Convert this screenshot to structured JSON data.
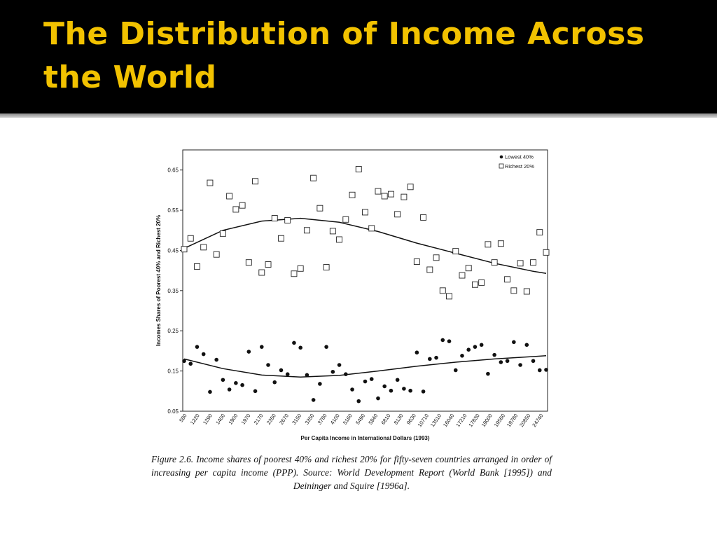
{
  "slide": {
    "title": "The Distribution of Income Across the World"
  },
  "caption": {
    "text": "Figure 2.6.  Income shares of poorest 40% and richest 20% for fifty-seven countries arranged in order of increasing per capita income (PPP). Source: World Development Report (World Bank [1995]) and Deininger and Squire [1996a]."
  },
  "colors": {
    "title": "#f2c200",
    "background": "#000000"
  },
  "chart_data": {
    "type": "scatter",
    "xlabel": "Per Capita Income in International Dollars (1993)",
    "ylabel": "Incomes Shares of Poorest 40% and Richest 20%",
    "ylim": [
      0.05,
      0.7
    ],
    "yticks": [
      0.05,
      0.15,
      0.25,
      0.35,
      0.45,
      0.55,
      0.65
    ],
    "legend_position": "top-right",
    "x_tick_labels": [
      "580",
      "1220",
      "1290",
      "1400",
      "1900",
      "1970",
      "2170",
      "2350",
      "2670",
      "3150",
      "3350",
      "3780",
      "4100",
      "5160",
      "5490",
      "5840",
      "6810",
      "8130",
      "9630",
      "10710",
      "13510",
      "16040",
      "17210",
      "17830",
      "19000",
      "19560",
      "19780",
      "20850",
      "24740"
    ],
    "grid": false,
    "series": [
      {
        "name": "Lowest 40%",
        "marker": "filled-circle",
        "values": [
          0.175,
          0.168,
          0.21,
          0.192,
          0.098,
          0.178,
          0.128,
          0.104,
          0.12,
          0.115,
          0.198,
          0.1,
          0.21,
          0.165,
          0.122,
          0.152,
          0.142,
          0.22,
          0.208,
          0.14,
          0.078,
          0.118,
          0.21,
          0.148,
          0.165,
          0.142,
          0.104,
          0.075,
          0.124,
          0.13,
          0.082,
          0.112,
          0.101,
          0.128,
          0.106,
          0.101,
          0.196,
          0.099,
          0.18,
          0.183,
          0.227,
          0.224,
          0.152,
          0.188,
          0.203,
          0.21,
          0.215,
          0.143,
          0.19,
          0.172,
          0.175,
          0.222,
          0.165,
          0.215,
          0.175,
          0.152,
          0.153
        ]
      },
      {
        "name": "Richest 20%",
        "marker": "open-square",
        "values": [
          0.453,
          0.48,
          0.41,
          0.458,
          0.618,
          0.44,
          0.492,
          0.585,
          0.552,
          0.562,
          0.42,
          0.622,
          0.395,
          0.415,
          0.53,
          0.48,
          0.525,
          0.392,
          0.405,
          0.5,
          0.63,
          0.555,
          0.408,
          0.498,
          0.477,
          0.527,
          0.588,
          0.652,
          0.545,
          0.505,
          0.597,
          0.585,
          0.59,
          0.54,
          0.583,
          0.608,
          0.422,
          0.532,
          0.402,
          0.432,
          0.35,
          0.336,
          0.448,
          0.388,
          0.406,
          0.365,
          0.37,
          0.465,
          0.42,
          0.467,
          0.378,
          0.35,
          0.418,
          0.348,
          0.42,
          0.495,
          0.445
        ]
      }
    ],
    "trend_lines": [
      {
        "series": "Richest 20%",
        "x": [
          0,
          6,
          12,
          18,
          24,
          30,
          36,
          42,
          48,
          54,
          56
        ],
        "y": [
          0.455,
          0.5,
          0.523,
          0.53,
          0.52,
          0.497,
          0.468,
          0.443,
          0.418,
          0.398,
          0.393
        ]
      },
      {
        "series": "Lowest 40%",
        "x": [
          0,
          6,
          12,
          18,
          24,
          30,
          36,
          42,
          48,
          54,
          56
        ],
        "y": [
          0.18,
          0.156,
          0.14,
          0.135,
          0.139,
          0.15,
          0.162,
          0.172,
          0.18,
          0.186,
          0.188
        ]
      }
    ]
  }
}
